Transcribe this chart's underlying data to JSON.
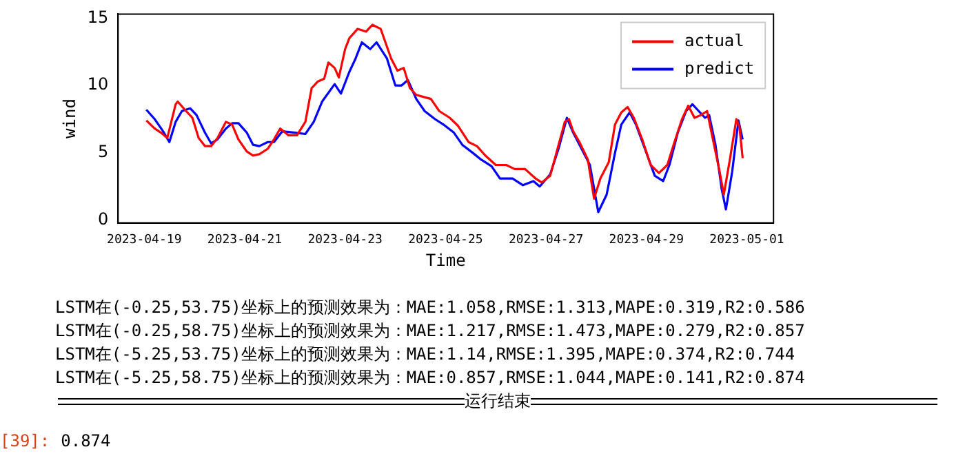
{
  "chart_data": {
    "type": "line",
    "xlabel": "Time",
    "ylabel": "wind",
    "xlim": [
      "2023-04-18T11:30",
      "2023-05-01T12:45"
    ],
    "ylim": [
      -0.2,
      15.3
    ],
    "xticks": [
      "2023-04-19",
      "2023-04-21",
      "2023-04-23",
      "2023-04-25",
      "2023-04-27",
      "2023-04-29",
      "2023-05-01"
    ],
    "yticks": [
      0,
      5,
      10,
      15
    ],
    "grid": false,
    "legend": "top right",
    "marker": "none",
    "line_style": "solid",
    "series": [
      {
        "name": "actual",
        "color": "#ff0000",
        "x": [
          "2023-04-19T01:00",
          "2023-04-19T05:00",
          "2023-04-19T08:00",
          "2023-04-19T11:00",
          "2023-04-19T15:00",
          "2023-04-19T16:00",
          "2023-04-19T20:00",
          "2023-04-19T23:00",
          "2023-04-20T02:00",
          "2023-04-20T05:00",
          "2023-04-20T08:00",
          "2023-04-20T11:00",
          "2023-04-20T15:00",
          "2023-04-20T18:00",
          "2023-04-20T21:00",
          "2023-04-21T01:00",
          "2023-04-21T04:00",
          "2023-04-21T07:00",
          "2023-04-21T11:00",
          "2023-04-21T14:00",
          "2023-04-21T17:00",
          "2023-04-21T21:00",
          "2023-04-22T01:00",
          "2023-04-22T05:00",
          "2023-04-22T08:00",
          "2023-04-22T11:00",
          "2023-04-22T14:00",
          "2023-04-22T16:00",
          "2023-04-22T19:00",
          "2023-04-22T21:00",
          "2023-04-23T00:00",
          "2023-04-23T02:00",
          "2023-04-23T06:00",
          "2023-04-23T10:00",
          "2023-04-23T13:00",
          "2023-04-23T17:00",
          "2023-04-23T22:00",
          "2023-04-24T01:00",
          "2023-04-24T04:00",
          "2023-04-24T07:00",
          "2023-04-24T10:00",
          "2023-04-24T17:00",
          "2023-04-24T21:00",
          "2023-04-25T02:00",
          "2023-04-25T06:00",
          "2023-04-25T11:00",
          "2023-04-25T15:00",
          "2023-04-25T19:00",
          "2023-04-26T00:00",
          "2023-04-26T05:00",
          "2023-04-26T09:00",
          "2023-04-26T14:00",
          "2023-04-26T19:00",
          "2023-04-26T22:00",
          "2023-04-27T02:00",
          "2023-04-27T05:00",
          "2023-04-27T09:00",
          "2023-04-27T11:00",
          "2023-04-27T13:00",
          "2023-04-27T16:00",
          "2023-04-27T20:00",
          "2023-04-27T23:00",
          "2023-04-28T02:00",
          "2023-04-28T06:00",
          "2023-04-28T09:00",
          "2023-04-28T12:00",
          "2023-04-28T15:00",
          "2023-04-28T18:00",
          "2023-04-28T22:00",
          "2023-04-29T02:00",
          "2023-04-29T06:00",
          "2023-04-29T10:00",
          "2023-04-29T13:00",
          "2023-04-29T17:00",
          "2023-04-29T20:00",
          "2023-04-29T23:00",
          "2023-04-30T02:00",
          "2023-04-30T05:00",
          "2023-04-30T07:00",
          "2023-04-30T11:00",
          "2023-04-30T13:00",
          "2023-04-30T16:00",
          "2023-04-30T19:00",
          "2023-04-30T20:30",
          "2023-04-30T22:00"
        ],
        "values": [
          7.4,
          6.8,
          6.5,
          6.1,
          8.6,
          8.8,
          8.1,
          7.6,
          6.1,
          5.5,
          5.5,
          6.1,
          7.3,
          7.1,
          6.0,
          5.1,
          4.8,
          4.9,
          5.3,
          6.0,
          6.8,
          6.3,
          6.3,
          7.3,
          9.8,
          10.3,
          10.5,
          11.7,
          11.3,
          10.6,
          12.7,
          13.5,
          14.2,
          14.0,
          14.5,
          14.2,
          12.0,
          11.1,
          11.3,
          9.8,
          9.3,
          9.0,
          8.1,
          7.6,
          7.0,
          5.8,
          5.5,
          4.8,
          4.1,
          4.1,
          3.8,
          3.8,
          3.1,
          2.8,
          3.3,
          5.0,
          7.3,
          7.5,
          6.6,
          5.8,
          4.5,
          1.6,
          3.1,
          4.3,
          7.1,
          8.0,
          8.4,
          7.6,
          6.0,
          4.1,
          3.5,
          4.1,
          5.6,
          7.5,
          8.5,
          7.6,
          7.8,
          8.1,
          6.6,
          3.6,
          1.9,
          4.6,
          7.5,
          6.9,
          4.6
        ]
      },
      {
        "name": "predict",
        "color": "#0000ff",
        "x": [
          "2023-04-19T01:00",
          "2023-04-19T05:00",
          "2023-04-19T09:00",
          "2023-04-19T12:00",
          "2023-04-19T15:00",
          "2023-04-19T18:00",
          "2023-04-19T22:00",
          "2023-04-20T01:00",
          "2023-04-20T05:00",
          "2023-04-20T08:00",
          "2023-04-20T11:00",
          "2023-04-20T15:00",
          "2023-04-20T18:00",
          "2023-04-20T21:00",
          "2023-04-21T01:00",
          "2023-04-21T04:00",
          "2023-04-21T07:00",
          "2023-04-21T11:00",
          "2023-04-21T14:00",
          "2023-04-21T18:00",
          "2023-04-22T00:00",
          "2023-04-22T05:00",
          "2023-04-22T09:00",
          "2023-04-22T13:00",
          "2023-04-22T19:00",
          "2023-04-22T22:00",
          "2023-04-23T02:00",
          "2023-04-23T05:00",
          "2023-04-23T08:00",
          "2023-04-23T12:00",
          "2023-04-23T15:00",
          "2023-04-23T20:00",
          "2023-04-24T00:00",
          "2023-04-24T03:00",
          "2023-04-24T06:00",
          "2023-04-24T10:00",
          "2023-04-24T14:00",
          "2023-04-24T19:00",
          "2023-04-24T23:00",
          "2023-04-25T04:00",
          "2023-04-25T08:00",
          "2023-04-25T13:00",
          "2023-04-25T17:00",
          "2023-04-25T22:00",
          "2023-04-26T02:00",
          "2023-04-26T08:00",
          "2023-04-26T13:00",
          "2023-04-26T18:00",
          "2023-04-26T21:00",
          "2023-04-27T02:00",
          "2023-04-27T06:00",
          "2023-04-27T10:00",
          "2023-04-27T13:00",
          "2023-04-27T17:00",
          "2023-04-27T21:00",
          "2023-04-28T01:00",
          "2023-04-28T05:00",
          "2023-04-28T09:00",
          "2023-04-28T12:00",
          "2023-04-28T16:00",
          "2023-04-28T19:00",
          "2023-04-29T00:00",
          "2023-04-29T04:00",
          "2023-04-29T08:00",
          "2023-04-29T11:00",
          "2023-04-29T15:00",
          "2023-04-29T19:00",
          "2023-04-29T22:00",
          "2023-04-30T01:00",
          "2023-04-30T04:00",
          "2023-04-30T06:00",
          "2023-04-30T09:00",
          "2023-04-30T12:00",
          "2023-04-30T14:00",
          "2023-04-30T17:00",
          "2023-04-30T20:00",
          "2023-04-30T22:00"
        ],
        "values": [
          8.2,
          7.5,
          6.6,
          5.8,
          7.3,
          8.1,
          8.3,
          7.8,
          6.5,
          5.7,
          6.0,
          6.8,
          7.2,
          7.2,
          6.5,
          5.6,
          5.5,
          5.8,
          5.8,
          6.6,
          6.5,
          6.4,
          7.3,
          8.8,
          10.1,
          9.4,
          11.0,
          12.0,
          13.2,
          12.7,
          13.2,
          12.0,
          10.0,
          10.0,
          10.4,
          9.0,
          8.1,
          7.5,
          7.1,
          6.5,
          5.6,
          5.0,
          4.5,
          4.0,
          3.1,
          3.1,
          2.6,
          2.9,
          2.5,
          3.4,
          5.3,
          7.6,
          6.5,
          5.3,
          4.1,
          0.6,
          1.9,
          5.0,
          7.1,
          8.0,
          7.1,
          5.0,
          3.3,
          2.9,
          4.1,
          6.5,
          8.1,
          8.6,
          8.1,
          7.6,
          7.8,
          5.6,
          2.3,
          0.8,
          3.6,
          7.4,
          6.0
        ]
      }
    ],
    "annotations": [
      "LSTM在(-0.25,53.75)坐标上的预测效果为：MAE:1.058,RMSE:1.313,MAPE:0.319,R2:0.586",
      "LSTM在(-0.25,58.75)坐标上的预测效果为：MAE:1.217,RMSE:1.473,MAPE:0.279,R2:0.857",
      "LSTM在(-5.25,53.75)坐标上的预测效果为：MAE:1.14,RMSE:1.395,MAPE:0.374,R2:0.744",
      "LSTM在(-5.25,58.75)坐标上的预测效果为：MAE:0.857,RMSE:1.044,MAPE:0.141,R2:0.874",
      "运行结束",
      "[39]:",
      "0.874"
    ]
  }
}
